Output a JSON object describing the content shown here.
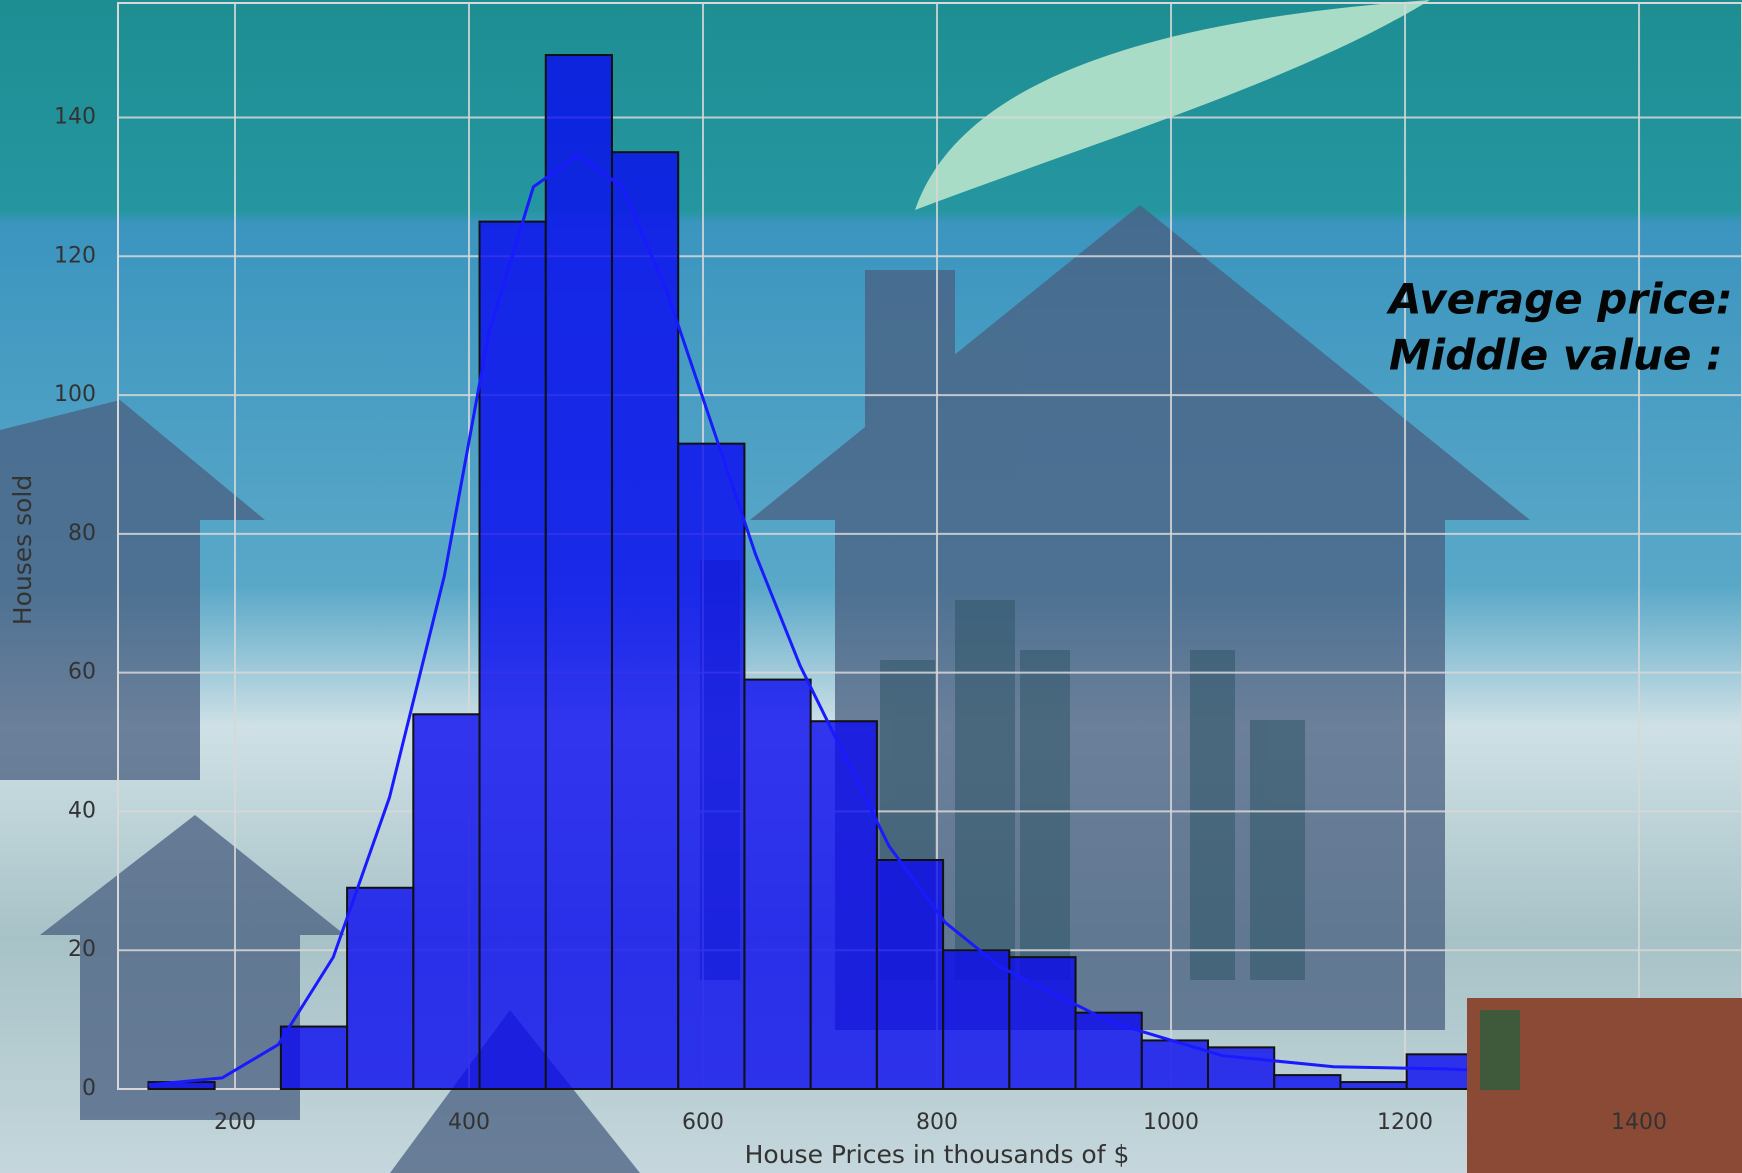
{
  "chart_data": {
    "type": "histogram",
    "x_label": "House Prices in thousands of $",
    "y_label": "Houses sold",
    "annotations": [
      "Average price:",
      "Middle value :"
    ],
    "bins": [
      126,
      182.6,
      239.2,
      295.8,
      352.4,
      409,
      465.6,
      522.2,
      578.8,
      635.4,
      692,
      748.6,
      805.2,
      861.8,
      918.4,
      975,
      1031.6,
      1088.2,
      1144.8,
      1201.4,
      1258,
      1314.6
    ],
    "values": [
      1,
      0,
      9,
      29,
      54,
      125,
      149,
      135,
      93,
      59,
      53,
      33,
      20,
      19,
      11,
      7,
      6,
      2,
      1,
      5,
      4
    ],
    "color": "#0a0af0",
    "edge_color": "#111111",
    "kde": {
      "color": "#1a1aff",
      "x": [
        126,
        189,
        237,
        284,
        332,
        379,
        417,
        455,
        493,
        531,
        569,
        607,
        645,
        683,
        721,
        759,
        807,
        854,
        949,
        1044,
        1139,
        1234,
        1329,
        1488
      ],
      "values": [
        0.6,
        1.6,
        6.4,
        19,
        42,
        74,
        109,
        130,
        134.6,
        130,
        115,
        96,
        77,
        61,
        48,
        35,
        24,
        17.6,
        9.6,
        4.8,
        3.2,
        2.9,
        2.2,
        0.8
      ]
    },
    "xlim": [
      100,
      1488
    ],
    "ylim": [
      0,
      156.5
    ],
    "xticks": [
      200,
      400,
      600,
      800,
      1000,
      1200,
      1400
    ],
    "yticks": [
      0,
      20,
      40,
      60,
      80,
      100,
      120,
      140
    ],
    "grid": true
  }
}
